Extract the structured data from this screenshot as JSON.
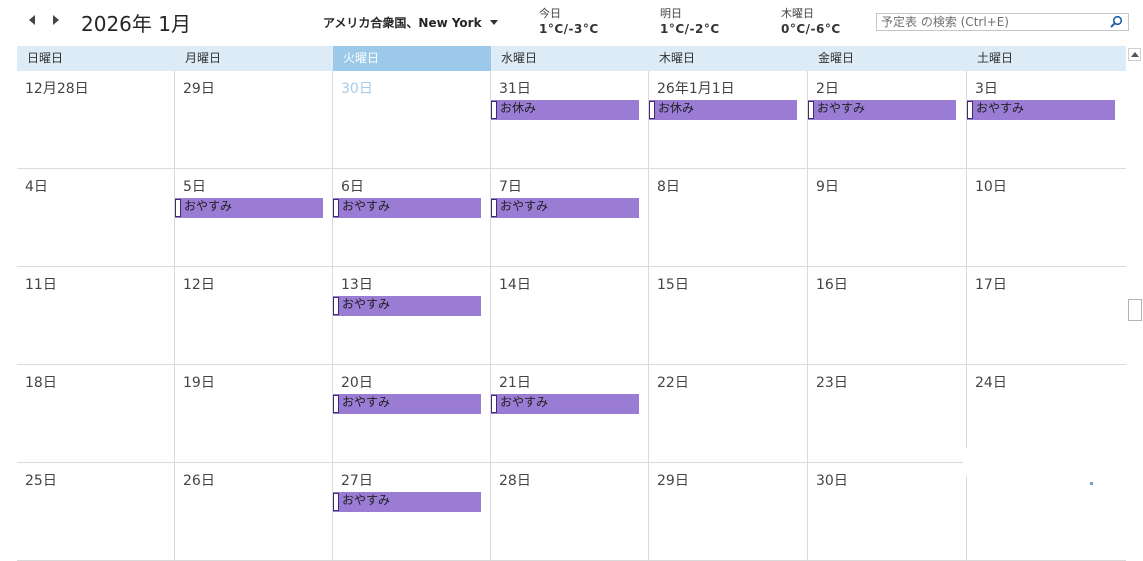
{
  "header": {
    "month_title": "2026年 1月",
    "location": "アメリカ合衆国、New York",
    "weather": [
      {
        "label": "今日",
        "temps": "1°C/-3°C"
      },
      {
        "label": "明日",
        "temps": "1°C/-2°C"
      },
      {
        "label": "木曜日",
        "temps": "0°C/-6°C"
      }
    ],
    "search_placeholder": "予定表 の検索 (Ctrl+E)"
  },
  "weekdays": [
    "日曜日",
    "月曜日",
    "火曜日",
    "水曜日",
    "木曜日",
    "金曜日",
    "土曜日"
  ],
  "today_weekday_index": 2,
  "weeks": [
    [
      {
        "label": "12月28日"
      },
      {
        "label": "29日"
      },
      {
        "label": "30日",
        "today": true
      },
      {
        "label": "31日",
        "event": "お休み"
      },
      {
        "label": "26年1月1日",
        "event": "お休み"
      },
      {
        "label": "2日",
        "event": "おやすみ"
      },
      {
        "label": "3日",
        "event": "おやすみ"
      }
    ],
    [
      {
        "label": "4日"
      },
      {
        "label": "5日",
        "event": "おやすみ"
      },
      {
        "label": "6日",
        "event": "おやすみ"
      },
      {
        "label": "7日",
        "event": "おやすみ"
      },
      {
        "label": "8日"
      },
      {
        "label": "9日"
      },
      {
        "label": "10日"
      }
    ],
    [
      {
        "label": "11日"
      },
      {
        "label": "12日"
      },
      {
        "label": "13日",
        "event": "おやすみ"
      },
      {
        "label": "14日"
      },
      {
        "label": "15日"
      },
      {
        "label": "16日"
      },
      {
        "label": "17日"
      }
    ],
    [
      {
        "label": "18日"
      },
      {
        "label": "19日"
      },
      {
        "label": "20日",
        "event": "おやすみ"
      },
      {
        "label": "21日",
        "event": "おやすみ"
      },
      {
        "label": "22日"
      },
      {
        "label": "23日"
      },
      {
        "label": "24日"
      }
    ],
    [
      {
        "label": "25日"
      },
      {
        "label": "26日"
      },
      {
        "label": "27日",
        "event": "おやすみ"
      },
      {
        "label": "28日"
      },
      {
        "label": "29日"
      },
      {
        "label": "30日"
      },
      {
        "label": ""
      }
    ]
  ],
  "colors": {
    "event_fill": "#9a7cd5",
    "weekday_header": "#dcebf6",
    "today_header": "#9cc9ea",
    "today_date_text": "#a6cbe8"
  }
}
